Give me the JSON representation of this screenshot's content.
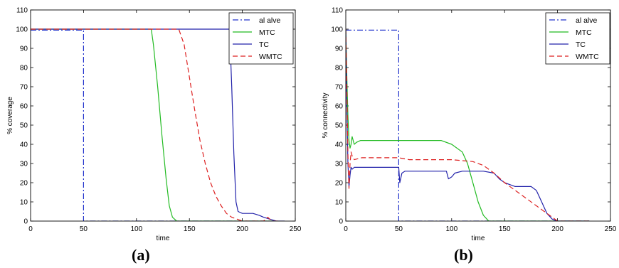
{
  "chart_data": [
    {
      "type": "line",
      "panel_label": "(a)",
      "xlabel": "time",
      "ylabel": "% coverage",
      "xlim": [
        0,
        250
      ],
      "ylim": [
        0,
        110
      ],
      "xticks": [
        "0",
        "50",
        "100",
        "150",
        "200",
        "250"
      ],
      "yticks": [
        "0",
        "10",
        "20",
        "30",
        "40",
        "50",
        "60",
        "70",
        "80",
        "90",
        "100",
        "110"
      ],
      "grid": false,
      "legend_position": "top-right",
      "series": [
        {
          "name": "al alve",
          "color": "#2233cc",
          "dash": "8 3 2 3",
          "points": [
            [
              0,
              99.5
            ],
            [
              50,
              99.5
            ],
            [
              50,
              0
            ],
            [
              230,
              0
            ]
          ]
        },
        {
          "name": "MTC",
          "color": "#22bb22",
          "dash": "",
          "points": [
            [
              0,
              100
            ],
            [
              114,
              100
            ],
            [
              116,
              92
            ],
            [
              120,
              70
            ],
            [
              124,
              45
            ],
            [
              128,
              22
            ],
            [
              131,
              8
            ],
            [
              134,
              2
            ],
            [
              138,
              0
            ],
            [
              230,
              0
            ]
          ]
        },
        {
          "name": "TC",
          "color": "#2222aa",
          "dash": "",
          "points": [
            [
              0,
              100
            ],
            [
              188,
              100
            ],
            [
              190,
              70
            ],
            [
              192,
              35
            ],
            [
              194,
              10
            ],
            [
              196,
              5
            ],
            [
              200,
              4
            ],
            [
              210,
              4
            ],
            [
              216,
              3
            ],
            [
              220,
              2
            ],
            [
              226,
              1
            ],
            [
              232,
              0
            ],
            [
              240,
              0
            ]
          ]
        },
        {
          "name": "WMTC",
          "color": "#dd2222",
          "dash": "7 4",
          "points": [
            [
              0,
              100
            ],
            [
              140,
              100
            ],
            [
              145,
              92
            ],
            [
              150,
              75
            ],
            [
              155,
              58
            ],
            [
              160,
              42
            ],
            [
              165,
              30
            ],
            [
              170,
              20
            ],
            [
              175,
              13
            ],
            [
              180,
              8
            ],
            [
              185,
              4
            ],
            [
              190,
              2
            ],
            [
              195,
              1
            ],
            [
              200,
              0
            ],
            [
              220,
              0
            ],
            [
              224,
              2
            ],
            [
              228,
              0
            ],
            [
              235,
              0
            ]
          ]
        }
      ]
    },
    {
      "type": "line",
      "panel_label": "(b)",
      "xlabel": "time",
      "ylabel": "% connectivity",
      "xlim": [
        0,
        250
      ],
      "ylim": [
        0,
        110
      ],
      "xticks": [
        "0",
        "50",
        "100",
        "150",
        "200",
        "250"
      ],
      "yticks": [
        "0",
        "10",
        "20",
        "30",
        "40",
        "50",
        "60",
        "70",
        "80",
        "90",
        "100",
        "110"
      ],
      "grid": false,
      "legend_position": "top-right",
      "series": [
        {
          "name": "al alve",
          "color": "#2233cc",
          "dash": "8 3 2 3",
          "points": [
            [
              0,
              99.5
            ],
            [
              50,
              99.5
            ],
            [
              50,
              0
            ],
            [
              230,
              0
            ]
          ]
        },
        {
          "name": "MTC",
          "color": "#22bb22",
          "dash": "",
          "points": [
            [
              0,
              100
            ],
            [
              1,
              75
            ],
            [
              2,
              55
            ],
            [
              3,
              42
            ],
            [
              4,
              38
            ],
            [
              5,
              40
            ],
            [
              6,
              44
            ],
            [
              7,
              42
            ],
            [
              8,
              40
            ],
            [
              10,
              41
            ],
            [
              14,
              42
            ],
            [
              60,
              42
            ],
            [
              90,
              42
            ],
            [
              100,
              40
            ],
            [
              110,
              36
            ],
            [
              115,
              30
            ],
            [
              120,
              20
            ],
            [
              125,
              10
            ],
            [
              130,
              3
            ],
            [
              135,
              0
            ],
            [
              230,
              0
            ]
          ]
        },
        {
          "name": "TC",
          "color": "#2222aa",
          "dash": "",
          "points": [
            [
              0,
              100
            ],
            [
              1,
              60
            ],
            [
              2,
              30
            ],
            [
              3,
              18
            ],
            [
              4,
              24
            ],
            [
              5,
              28
            ],
            [
              6,
              27
            ],
            [
              8,
              28
            ],
            [
              50,
              28
            ],
            [
              51,
              20
            ],
            [
              53,
              25
            ],
            [
              56,
              26
            ],
            [
              95,
              26
            ],
            [
              97,
              22
            ],
            [
              100,
              23
            ],
            [
              103,
              25
            ],
            [
              110,
              26
            ],
            [
              130,
              26
            ],
            [
              140,
              25
            ],
            [
              145,
              22
            ],
            [
              150,
              20
            ],
            [
              155,
              19
            ],
            [
              160,
              18
            ],
            [
              175,
              18
            ],
            [
              180,
              16
            ],
            [
              185,
              10
            ],
            [
              190,
              4
            ],
            [
              195,
              1
            ],
            [
              200,
              0
            ],
            [
              230,
              0
            ]
          ]
        },
        {
          "name": "WMTC",
          "color": "#dd2222",
          "dash": "7 4",
          "points": [
            [
              0,
              100
            ],
            [
              1,
              70
            ],
            [
              2,
              35
            ],
            [
              3,
              17
            ],
            [
              4,
              30
            ],
            [
              5,
              36
            ],
            [
              6,
              34
            ],
            [
              8,
              32
            ],
            [
              15,
              33
            ],
            [
              50,
              33
            ],
            [
              60,
              32
            ],
            [
              100,
              32
            ],
            [
              120,
              31
            ],
            [
              130,
              29
            ],
            [
              140,
              25
            ],
            [
              150,
              20
            ],
            [
              160,
              16
            ],
            [
              170,
              12
            ],
            [
              180,
              8
            ],
            [
              190,
              4
            ],
            [
              195,
              2
            ],
            [
              200,
              0
            ],
            [
              230,
              0
            ]
          ]
        }
      ]
    }
  ]
}
